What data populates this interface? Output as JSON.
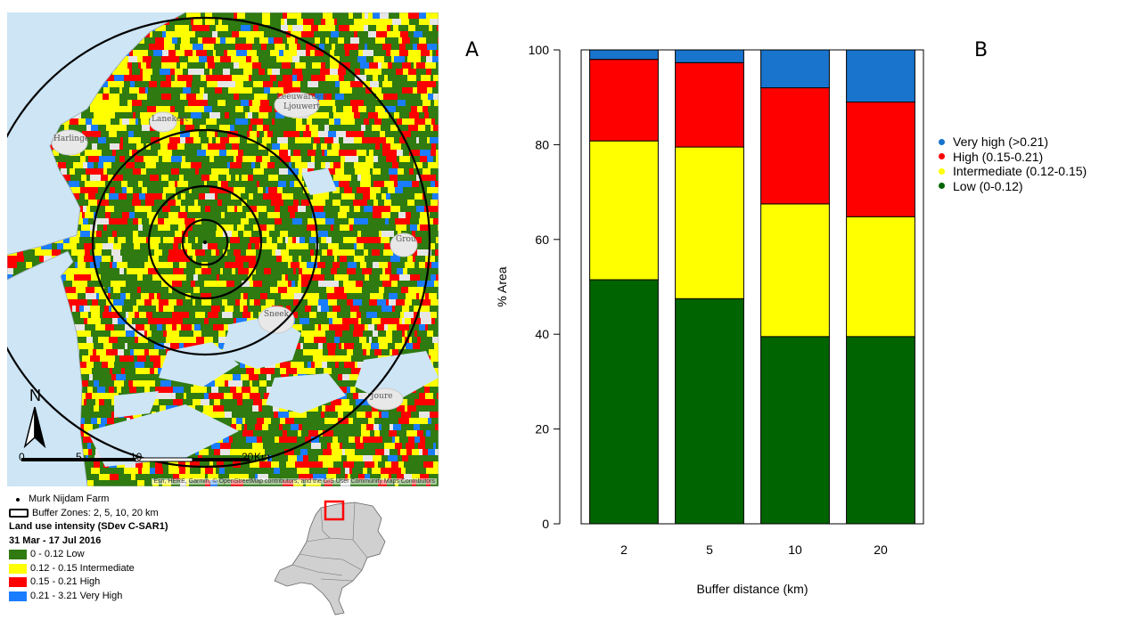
{
  "panel_labels": {
    "a": "A",
    "b": "B"
  },
  "map": {
    "towns": [
      "Leeuwarden",
      "Ljouwert",
      "Sneek",
      "Joure",
      "Lanekert",
      "Harlingen",
      "Grou"
    ],
    "north_label": "N",
    "scale_labels": [
      "0",
      "5",
      "10",
      "20",
      "Km"
    ],
    "attribution": "Esri, HERE, Garmin, © OpenStreetMap contributors, and the GIS User Community Maps Contributors",
    "buffer_zones_km": [
      2,
      5,
      10,
      20
    ],
    "colors": {
      "water": "#cde5f5",
      "low": "#2f7a11",
      "intermediate": "#ffff00",
      "high": "#ff0000",
      "very_high": "#1a7dff"
    }
  },
  "map_legend": {
    "farm": "Murk Nijdam Farm",
    "buffers": "Buffer Zones: 2, 5, 10, 20 km",
    "title": "Land use intensity (SDev C-SAR1)",
    "period": "31 Mar - 17 Jul 2016",
    "classes": [
      {
        "label": "0 - 0.12 Low",
        "color": "#2f7a11"
      },
      {
        "label": "0.12 - 0.15 Intermediate",
        "color": "#ffff00"
      },
      {
        "label": "0.15 - 0.21 High",
        "color": "#ff0000"
      },
      {
        "label": "0.21 - 3.21 Very High",
        "color": "#1a7dff"
      }
    ]
  },
  "chart_data": {
    "type": "bar",
    "stacked": true,
    "categories": [
      "2",
      "5",
      "10",
      "20"
    ],
    "series": [
      {
        "name": "Low (0-0.12)",
        "color": "#006400",
        "values": [
          51.5,
          47.5,
          39.5,
          39.5
        ]
      },
      {
        "name": "Intermediate (0.12-0.15)",
        "color": "#ffff00",
        "values": [
          29.3,
          32,
          28,
          25.3
        ]
      },
      {
        "name": "High (0.15-0.21)",
        "color": "#ff0000",
        "values": [
          17.2,
          17.8,
          24.5,
          24.2
        ]
      },
      {
        "name": "Very high (>0.21)",
        "color": "#1874cd",
        "values": [
          2,
          2.7,
          8,
          11
        ]
      }
    ],
    "legend_order": [
      "Very high (>0.21)",
      "High (0.15-0.21)",
      "Intermediate (0.12-0.15)",
      "Low (0-0.12)"
    ],
    "xlabel": "Buffer distance (km)",
    "ylabel": "% Area",
    "ylim": [
      0,
      100
    ],
    "yticks": [
      0,
      20,
      40,
      60,
      80,
      100
    ],
    "legend_position": "right"
  }
}
